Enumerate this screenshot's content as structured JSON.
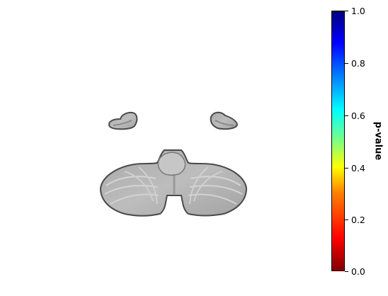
{
  "colorbar": {
    "label": "p-value",
    "ticks": [
      "1.0",
      "0.8",
      "0.6",
      "0.4",
      "0.2",
      "0.0"
    ],
    "range": [
      0.0,
      1.0
    ],
    "colormap": "jet_r",
    "stops": [
      "#800000",
      "#ff0000",
      "#ff8000",
      "#ffff00",
      "#80ff80",
      "#00ffff",
      "#0080ff",
      "#0000ff",
      "#000080"
    ]
  },
  "image": {
    "description_icon": "brain-slice-cerebellum-icon",
    "tissue_color": "#b9b9b9",
    "edge_color": "#4a4a4a"
  }
}
